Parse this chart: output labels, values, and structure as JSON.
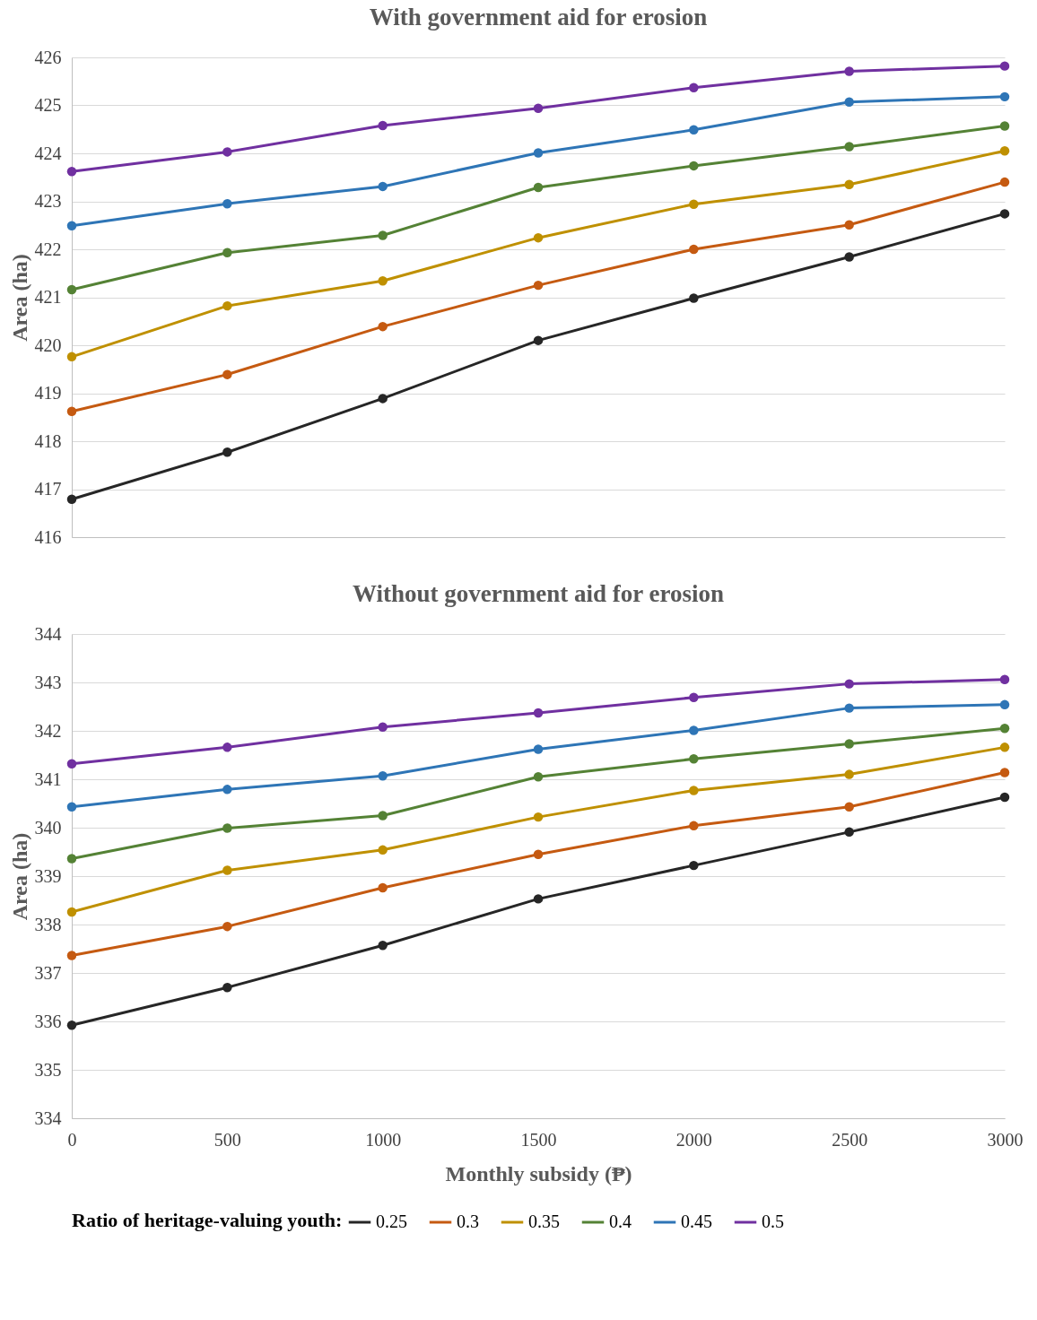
{
  "chart_data": [
    {
      "type": "line",
      "title": "With government aid for erosion",
      "ylabel": "Area (ha)",
      "x": [
        0,
        500,
        1000,
        1500,
        2000,
        2500,
        3000
      ],
      "xlim": [
        0,
        3000
      ],
      "xticks": [
        0,
        500,
        1000,
        1500,
        2000,
        2500,
        3000
      ],
      "ylim": [
        416,
        426
      ],
      "yticks": [
        416,
        417,
        418,
        419,
        420,
        421,
        422,
        423,
        424,
        425,
        426
      ],
      "grid": "y",
      "marker": "circle",
      "tick_labels": "y",
      "legend": "bottom",
      "series": [
        {
          "name": "0.25",
          "color": "#262626",
          "values": [
            416.79,
            417.77,
            418.89,
            420.1,
            420.98,
            421.84,
            422.74
          ]
        },
        {
          "name": "0.3",
          "color": "#c55a11",
          "values": [
            418.62,
            419.39,
            420.39,
            421.25,
            422.0,
            422.51,
            423.4
          ]
        },
        {
          "name": "0.35",
          "color": "#bf9000",
          "values": [
            419.76,
            420.82,
            421.34,
            422.24,
            422.94,
            423.35,
            424.05
          ]
        },
        {
          "name": "0.4",
          "color": "#548235",
          "values": [
            421.16,
            421.93,
            422.29,
            423.29,
            423.74,
            424.14,
            424.57
          ]
        },
        {
          "name": "0.45",
          "color": "#2e75b6",
          "values": [
            422.49,
            422.95,
            423.31,
            424.01,
            424.49,
            425.07,
            425.18
          ]
        },
        {
          "name": "0.5",
          "color": "#7030a0",
          "values": [
            423.62,
            424.03,
            424.58,
            424.94,
            425.37,
            425.71,
            425.82
          ]
        }
      ]
    },
    {
      "type": "line",
      "title": "Without government aid for erosion",
      "xlabel": "Monthly subsidy (₱)",
      "ylabel": "Area (ha)",
      "x": [
        0,
        500,
        1000,
        1500,
        2000,
        2500,
        3000
      ],
      "xlim": [
        0,
        3000
      ],
      "xticks": [
        0,
        500,
        1000,
        1500,
        2000,
        2500,
        3000
      ],
      "ylim": [
        334,
        344
      ],
      "yticks": [
        334,
        335,
        336,
        337,
        338,
        339,
        340,
        341,
        342,
        343,
        344
      ],
      "grid": "y",
      "marker": "circle",
      "legend": "bottom",
      "legend_title": "Ratio of heritage-valuing youth:",
      "series": [
        {
          "name": "0.25",
          "color": "#262626",
          "values": [
            335.92,
            336.7,
            337.57,
            338.53,
            339.22,
            339.91,
            340.63
          ]
        },
        {
          "name": "0.3",
          "color": "#c55a11",
          "values": [
            337.36,
            337.96,
            338.76,
            339.45,
            340.04,
            340.43,
            341.14
          ]
        },
        {
          "name": "0.35",
          "color": "#bf9000",
          "values": [
            338.26,
            339.12,
            339.54,
            340.22,
            340.77,
            341.1,
            341.66
          ]
        },
        {
          "name": "0.4",
          "color": "#548235",
          "values": [
            339.36,
            339.99,
            340.25,
            341.05,
            341.42,
            341.73,
            342.05
          ]
        },
        {
          "name": "0.45",
          "color": "#2e75b6",
          "values": [
            340.43,
            340.79,
            341.07,
            341.62,
            342.01,
            342.47,
            342.54
          ]
        },
        {
          "name": "0.5",
          "color": "#7030a0",
          "values": [
            341.32,
            341.66,
            342.08,
            342.37,
            342.69,
            342.97,
            343.06
          ]
        }
      ]
    }
  ]
}
